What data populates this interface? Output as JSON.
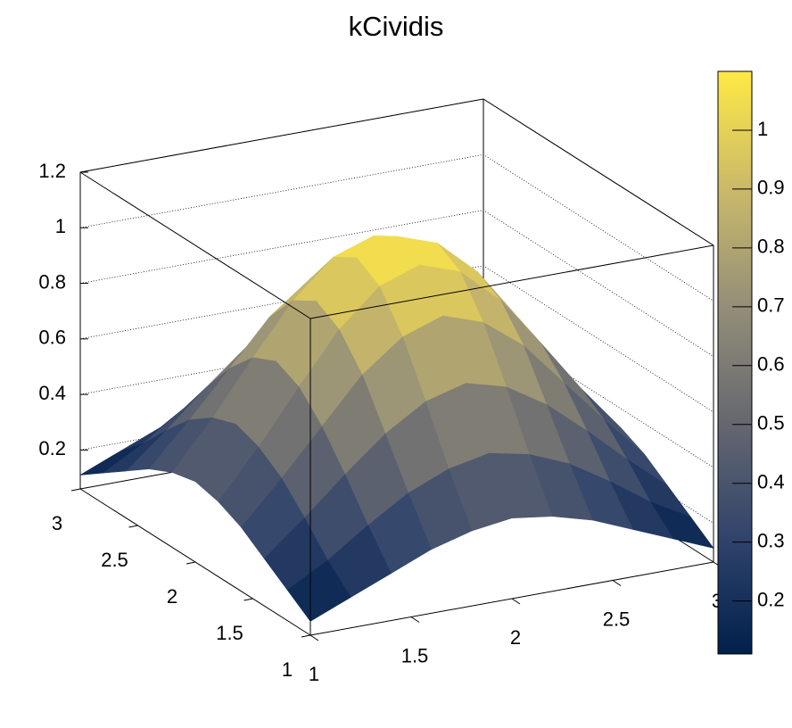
{
  "chart_data": {
    "type": "surface",
    "title": "kCividis",
    "x": [
      1,
      1.2,
      1.4,
      1.6,
      1.8,
      2,
      2.2,
      2.4,
      2.6,
      2.8,
      3
    ],
    "y": [
      1,
      1.2,
      1.4,
      1.6,
      1.8,
      2,
      2.2,
      2.4,
      2.6,
      2.8,
      3
    ],
    "z": [
      [
        0.11,
        0.17,
        0.23,
        0.29,
        0.33,
        0.35,
        0.33,
        0.29,
        0.23,
        0.17,
        0.11
      ],
      [
        0.17,
        0.25,
        0.35,
        0.44,
        0.5,
        0.53,
        0.5,
        0.44,
        0.35,
        0.25,
        0.17
      ],
      [
        0.23,
        0.35,
        0.48,
        0.6,
        0.69,
        0.73,
        0.69,
        0.6,
        0.48,
        0.35,
        0.23
      ],
      [
        0.29,
        0.44,
        0.6,
        0.76,
        0.87,
        0.92,
        0.87,
        0.76,
        0.6,
        0.44,
        0.29
      ],
      [
        0.33,
        0.5,
        0.69,
        0.87,
        1.0,
        1.05,
        1.0,
        0.87,
        0.69,
        0.5,
        0.33
      ],
      [
        0.35,
        0.53,
        0.73,
        0.92,
        1.05,
        1.1,
        1.05,
        0.92,
        0.73,
        0.53,
        0.35
      ],
      [
        0.33,
        0.5,
        0.69,
        0.87,
        1.0,
        1.05,
        1.0,
        0.87,
        0.69,
        0.5,
        0.33
      ],
      [
        0.29,
        0.44,
        0.6,
        0.76,
        0.87,
        0.92,
        0.87,
        0.76,
        0.6,
        0.44,
        0.29
      ],
      [
        0.23,
        0.35,
        0.48,
        0.6,
        0.69,
        0.73,
        0.69,
        0.6,
        0.48,
        0.35,
        0.23
      ],
      [
        0.17,
        0.25,
        0.35,
        0.44,
        0.5,
        0.53,
        0.5,
        0.44,
        0.35,
        0.25,
        0.17
      ],
      [
        0.11,
        0.17,
        0.23,
        0.29,
        0.33,
        0.35,
        0.33,
        0.29,
        0.23,
        0.17,
        0.11
      ]
    ],
    "xlim": [
      1,
      3
    ],
    "xticks": [
      1,
      1.5,
      2,
      2.5,
      3
    ],
    "ylim": [
      1,
      3
    ],
    "yticks": [
      1,
      1.5,
      2,
      2.5,
      3
    ],
    "zlim": [
      0.06,
      1.2
    ],
    "zticks": [
      0.2,
      0.4,
      0.6,
      0.8,
      1,
      1.2
    ],
    "colorbar_lim": [
      0.11,
      1.1
    ],
    "colorbar_ticks": [
      0.2,
      0.3,
      0.4,
      0.5,
      0.6,
      0.7,
      0.8,
      0.9,
      1
    ],
    "palette": [
      "#00204c",
      "#31446b",
      "#666870",
      "#958f78",
      "#cbba69",
      "#ffe945"
    ],
    "grid": true
  }
}
